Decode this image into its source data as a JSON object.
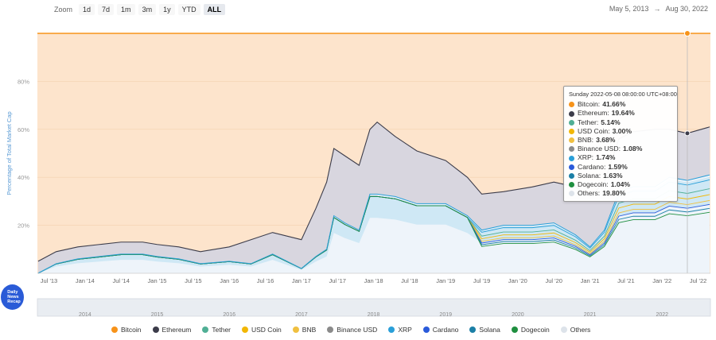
{
  "toolbar": {
    "zoom_label": "Zoom",
    "buttons": [
      "1d",
      "7d",
      "1m",
      "3m",
      "1y",
      "YTD",
      "ALL"
    ],
    "active": "ALL"
  },
  "date_range": {
    "from": "May 5, 2013",
    "arrow": "→",
    "to": "Aug 30, 2022"
  },
  "badge": {
    "line1": "Daily",
    "line2": "News",
    "line3": "Recap"
  },
  "colors": {
    "bitcoin": "#f7931a",
    "ethereum": "#3c3c4a",
    "tether": "#50af95",
    "usd_coin": "#f2b705",
    "bnb": "#f0c040",
    "binance_usd": "#8a8a8a",
    "xrp": "#2a9fd8",
    "cardano": "#2a5ada",
    "solana": "#1b7fa6",
    "dogecoin": "#1f8f3f",
    "others": "#dde3ea",
    "bitcoin_fill": "#fde4cc",
    "axis": "#999999",
    "grid": "#e8e8e8",
    "ylabel": "#5b9bd5"
  },
  "chart_data": {
    "type": "area",
    "ylabel": "Percentage of Total Market Cap",
    "yticks": [
      "20%",
      "40%",
      "60%",
      "80%"
    ],
    "ylim": [
      0,
      100
    ],
    "xticks": [
      "Jul '13",
      "Jan '14",
      "Jul '14",
      "Jan '15",
      "Jul '15",
      "Jan '16",
      "Jul '16",
      "Jan '17",
      "Jul '17",
      "Jan '18",
      "Jul '18",
      "Jan '19",
      "Jul '19",
      "Jan '20",
      "Jul '20",
      "Jan '21",
      "Jul '21",
      "Jan '22",
      "Jul '22"
    ],
    "x": [
      2013.35,
      2013.6,
      2013.9,
      2014.2,
      2014.5,
      2014.8,
      2015.0,
      2015.3,
      2015.6,
      2016.0,
      2016.3,
      2016.6,
      2017.0,
      2017.2,
      2017.35,
      2017.45,
      2017.6,
      2017.8,
      2017.95,
      2018.05,
      2018.3,
      2018.6,
      2019.0,
      2019.3,
      2019.5,
      2019.8,
      2020.2,
      2020.5,
      2020.8,
      2021.0,
      2021.2,
      2021.4,
      2021.6,
      2021.9,
      2022.1,
      2022.35,
      2022.66
    ],
    "series": [
      {
        "name": "Bitcoin",
        "values": [
          95,
          91,
          89,
          88,
          87,
          87,
          88,
          89,
          91,
          89,
          86,
          83,
          86,
          73,
          62,
          48,
          51,
          55,
          40,
          37,
          43,
          49,
          53,
          60,
          67,
          66,
          64,
          62,
          64,
          68,
          62,
          44,
          41,
          40,
          40,
          41.66,
          39
        ]
      },
      {
        "name": "Ethereum",
        "values": [
          5,
          5,
          5,
          5,
          5,
          5,
          5,
          5,
          5,
          6,
          10,
          9,
          12,
          20,
          28,
          28,
          28,
          27,
          27,
          30,
          25,
          22,
          18,
          16,
          15,
          14,
          16,
          17,
          20,
          21,
          20,
          22,
          23,
          24,
          20,
          19.64,
          20
        ]
      },
      {
        "name": "Others",
        "values": [
          0,
          4,
          6,
          7,
          8,
          8,
          7,
          6,
          4,
          5,
          4,
          8,
          2,
          7,
          10,
          24,
          21,
          18,
          33,
          33,
          32,
          29,
          29,
          24,
          18,
          20,
          20,
          21,
          16,
          11,
          18,
          34,
          36,
          36,
          40,
          38.7,
          41
        ]
      }
    ],
    "tooltip": {
      "date": "Sunday 2022-05-08 08:00:00 UTC+08:00",
      "entries": [
        {
          "name": "Bitcoin",
          "value": "41.66%"
        },
        {
          "name": "Ethereum",
          "value": "19.64%"
        },
        {
          "name": "Tether",
          "value": "5.14%"
        },
        {
          "name": "USD Coin",
          "value": "3.00%"
        },
        {
          "name": "BNB",
          "value": "3.68%"
        },
        {
          "name": "Binance USD",
          "value": "1.08%"
        },
        {
          "name": "XRP",
          "value": "1.74%"
        },
        {
          "name": "Cardano",
          "value": "1.59%"
        },
        {
          "name": "Solana",
          "value": "1.63%"
        },
        {
          "name": "Dogecoin",
          "value": "1.04%"
        },
        {
          "name": "Others",
          "value": "19.80%"
        }
      ]
    },
    "legend": [
      "Bitcoin",
      "Ethereum",
      "Tether",
      "USD Coin",
      "BNB",
      "Binance USD",
      "XRP",
      "Cardano",
      "Solana",
      "Dogecoin",
      "Others"
    ],
    "navigator_years": [
      "2014",
      "2015",
      "2016",
      "2017",
      "2018",
      "2019",
      "2020",
      "2021",
      "2022"
    ]
  }
}
